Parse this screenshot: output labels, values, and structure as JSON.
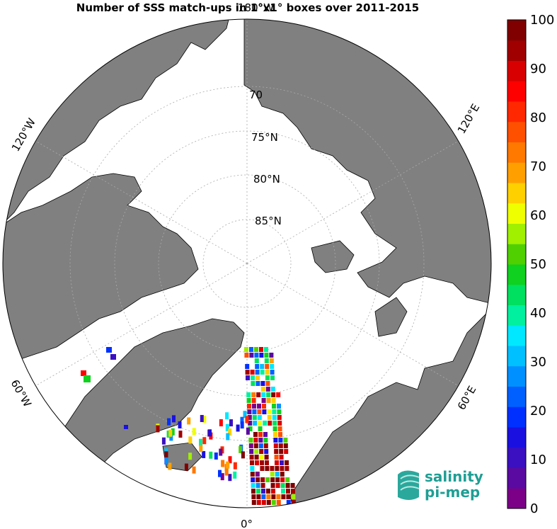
{
  "title": "Number of SSS match-ups in 1°x1° boxes over 2011-2015",
  "lat_labels": [
    "70",
    "75°N",
    "80°N",
    "85°N"
  ],
  "lon_labels": {
    "top": "180°W",
    "bottom": "0°",
    "upper_left": "120°W",
    "upper_right": "120°E",
    "lower_left": "60°W",
    "lower_right": "60°E"
  },
  "colorbar": {
    "ticks": [
      "100",
      "90",
      "80",
      "70",
      "60",
      "50",
      "40",
      "30",
      "20",
      "10",
      "0"
    ],
    "min": 0,
    "max": 100,
    "colors": [
      "#7b0087",
      "#5a0aa0",
      "#3a10c0",
      "#1a10e0",
      "#0030ff",
      "#0060ff",
      "#0090ff",
      "#00c0ff",
      "#00e8ff",
      "#00f0a0",
      "#00e060",
      "#10d020",
      "#50d000",
      "#a0f000",
      "#f0ff00",
      "#ffd000",
      "#ffa000",
      "#ff7800",
      "#ff5000",
      "#ff2800",
      "#ff0000",
      "#d80000",
      "#a00000",
      "#800000"
    ]
  },
  "logo": {
    "line1": "salinity",
    "line2": "pi-mep"
  }
}
